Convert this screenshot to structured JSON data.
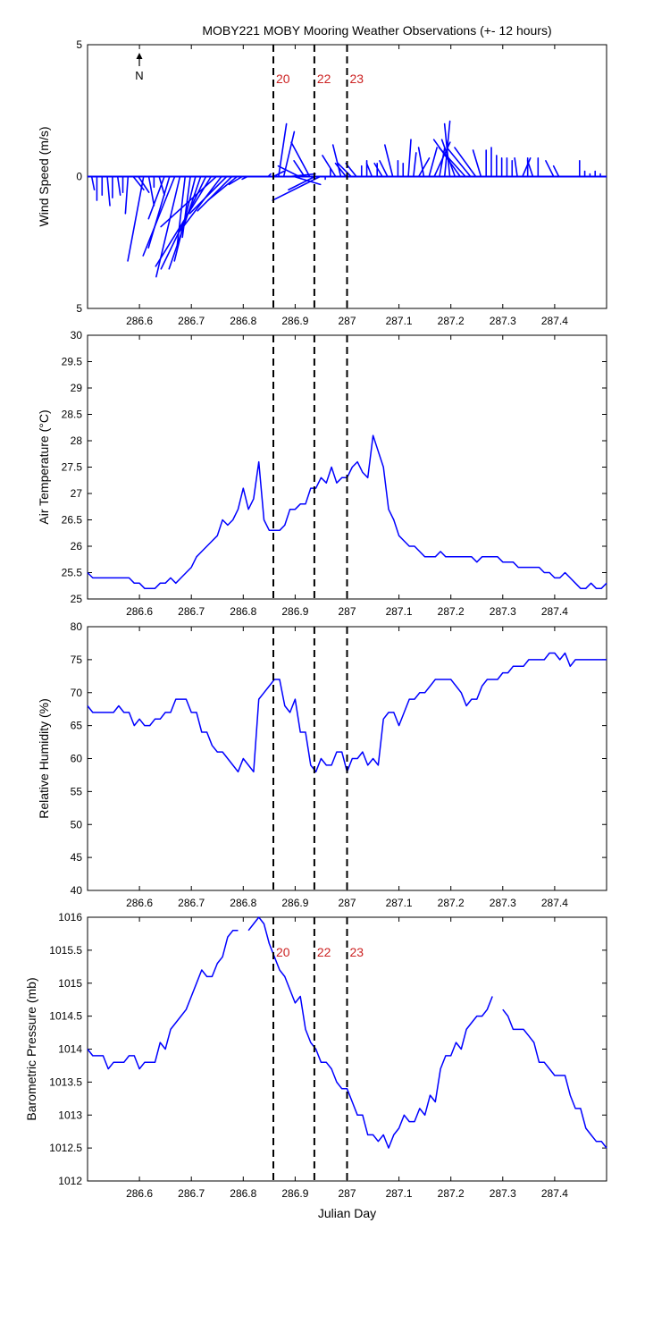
{
  "title": "MOBY221 MOBY Mooring Weather Observations (+- 12 hours)",
  "north_label": "N",
  "colors": {
    "series": "#0000ff",
    "marker_text": "#cc2222",
    "axis": "#000000"
  },
  "chart_data": [
    {
      "id": "wind",
      "type": "vector",
      "ylabel": "Wind Speed (m/s)",
      "xlim": [
        286.5,
        287.5
      ],
      "ylim": [
        -5,
        5
      ],
      "x_ticks": [
        286.6,
        286.7,
        286.8,
        286.9,
        287,
        287.1,
        287.2,
        287.3,
        287.4
      ],
      "x_tick_labels": [
        "286.6",
        "286.7",
        "286.8",
        "286.9",
        "287",
        "287.1",
        "287.2",
        "287.3",
        "287.4"
      ],
      "y_ticks": [
        5,
        0,
        -5
      ],
      "y_tick_labels": [
        "5",
        "0",
        "5"
      ],
      "x": [
        286.508,
        286.518,
        286.528,
        286.538,
        286.548,
        286.558,
        286.568,
        286.578,
        286.588,
        286.598,
        286.608,
        286.618,
        286.628,
        286.638,
        286.648,
        286.658,
        286.668,
        286.678,
        286.688,
        286.698,
        286.708,
        286.718,
        286.728,
        286.738,
        286.748,
        286.758,
        286.768,
        286.778,
        286.788,
        286.798,
        286.808,
        286.818,
        286.828,
        286.838,
        286.848,
        286.858,
        286.868,
        286.878,
        286.888,
        286.898,
        286.908,
        286.918,
        286.928,
        286.938,
        286.948,
        286.958,
        286.968,
        286.978,
        286.988,
        286.998,
        287.008,
        287.018,
        287.028,
        287.038,
        287.048,
        287.058,
        287.068,
        287.078,
        287.088,
        287.098,
        287.108,
        287.118,
        287.128,
        287.138,
        287.148,
        287.158,
        287.168,
        287.178,
        287.188,
        287.198,
        287.208,
        287.218,
        287.228,
        287.238,
        287.248,
        287.258,
        287.268,
        287.278,
        287.288,
        287.298,
        287.308,
        287.318,
        287.328,
        287.338,
        287.348,
        287.358,
        287.368,
        287.378,
        287.388,
        287.398,
        287.408,
        287.418,
        287.428,
        287.438,
        287.448,
        287.458,
        287.468,
        287.478,
        287.488
      ],
      "u": [
        0.1,
        0,
        0,
        0.1,
        0,
        0.1,
        0,
        -0.1,
        0.4,
        0.4,
        -0.6,
        0.2,
        0,
        0.2,
        -0.6,
        -0.8,
        -1.2,
        -0.9,
        -0.3,
        -0.3,
        -0.8,
        -1.2,
        -1.7,
        -2.1,
        -2.1,
        -1.6,
        -1.4,
        -1.3,
        -1.1,
        -0.5,
        -0.2,
        0,
        0,
        0,
        0.1,
        0.4,
        0.3,
        0.4,
        1.0,
        1.0,
        -0.8,
        -0.4,
        -0.7,
        -1.0,
        -1.8,
        0,
        0,
        -0.5,
        -0.3,
        -0.4,
        -0.5,
        -0.4,
        0,
        0,
        -0.2,
        0,
        -0.3,
        -0.3,
        -0.3,
        0,
        0,
        0.1,
        0.1,
        0.4,
        -0.2,
        0.3,
        0.6,
        0.2,
        0.2,
        -0.2,
        -0.5,
        -1.0,
        -1.0,
        -0.9,
        -0.8,
        -0.3,
        0,
        0,
        0,
        0,
        0,
        0,
        -0.1,
        0.3,
        0,
        -0.2,
        0,
        0,
        0,
        -0.3,
        -0.2,
        0,
        0,
        0,
        0,
        0,
        0,
        0,
        0
      ],
      "v": [
        -0.5,
        -0.9,
        -0.7,
        -1.1,
        -0.8,
        -0.7,
        -0.6,
        -1.4,
        -0.5,
        -0.6,
        -3.2,
        -1.1,
        -0.4,
        -0.7,
        -1.6,
        -2.7,
        -3.0,
        -3.8,
        -2.6,
        -2.3,
        -3.2,
        -3.5,
        -3.5,
        -3.4,
        -1.9,
        -2.1,
        -1.4,
        -1.3,
        -0.9,
        -0.3,
        -0.1,
        0,
        0,
        0,
        0.1,
        0.2,
        2.0,
        1.7,
        0.1,
        -0.3,
        0.4,
        0.6,
        1.3,
        -0.5,
        -0.9,
        -0.1,
        0.3,
        0.8,
        1.2,
        0.5,
        0.5,
        0.5,
        0.4,
        0.6,
        0.5,
        0.5,
        0.5,
        0.6,
        1.2,
        0.6,
        0.5,
        1.4,
        0.9,
        0.7,
        1.1,
        1.1,
        1.3,
        1.1,
        2.1,
        2.0,
        1.4,
        1.4,
        1.1,
        1.1,
        1.1,
        1.0,
        1.0,
        1.1,
        0.8,
        0.7,
        0.7,
        0.6,
        0.7,
        0.7,
        0.7,
        0.6,
        0.7,
        0,
        0,
        0.6,
        0.4,
        0,
        0,
        0,
        0.6,
        0.2,
        0.1,
        0.2,
        0.1
      ]
    },
    {
      "id": "air-temperature",
      "type": "line",
      "ylabel": "Air Temperature (°C)",
      "xlim": [
        286.5,
        287.5
      ],
      "ylim": [
        25,
        30
      ],
      "x_ticks": [
        286.6,
        286.7,
        286.8,
        286.9,
        287,
        287.1,
        287.2,
        287.3,
        287.4
      ],
      "x_tick_labels": [
        "286.6",
        "286.7",
        "286.8",
        "286.9",
        "287",
        "287.1",
        "287.2",
        "287.3",
        "287.4"
      ],
      "y_ticks": [
        25,
        25.5,
        26,
        26.5,
        27,
        27.5,
        28,
        28.5,
        29,
        29.5,
        30
      ],
      "y_tick_labels": [
        "25",
        "25.5",
        "26",
        "26.5",
        "27",
        "27.5",
        "28",
        "28.5",
        "29",
        "29.5",
        "30"
      ],
      "x": [
        286.5,
        286.51,
        286.52,
        286.53,
        286.54,
        286.55,
        286.56,
        286.57,
        286.58,
        286.59,
        286.6,
        286.61,
        286.62,
        286.63,
        286.64,
        286.65,
        286.66,
        286.67,
        286.68,
        286.69,
        286.7,
        286.71,
        286.72,
        286.73,
        286.74,
        286.75,
        286.76,
        286.77,
        286.78,
        286.79,
        286.8,
        286.81,
        286.82,
        286.83,
        286.84,
        286.85,
        286.86,
        286.87,
        286.88,
        286.89,
        286.9,
        286.91,
        286.92,
        286.93,
        286.94,
        286.95,
        286.96,
        286.97,
        286.98,
        286.99,
        287.0,
        287.01,
        287.02,
        287.03,
        287.04,
        287.05,
        287.06,
        287.07,
        287.08,
        287.09,
        287.1,
        287.11,
        287.12,
        287.13,
        287.14,
        287.15,
        287.16,
        287.17,
        287.18,
        287.19,
        287.2,
        287.21,
        287.22,
        287.23,
        287.24,
        287.25,
        287.26,
        287.27,
        287.28,
        287.29,
        287.3,
        287.31,
        287.32,
        287.33,
        287.34,
        287.35,
        287.36,
        287.37,
        287.38,
        287.39,
        287.4,
        287.41,
        287.42,
        287.43,
        287.44,
        287.45,
        287.46,
        287.47,
        287.48,
        287.49,
        287.5
      ],
      "y": [
        25.5,
        25.4,
        25.4,
        25.4,
        25.4,
        25.4,
        25.4,
        25.4,
        25.4,
        25.3,
        25.3,
        25.2,
        25.2,
        25.2,
        25.3,
        25.3,
        25.4,
        25.3,
        25.4,
        25.5,
        25.6,
        25.8,
        25.9,
        26.0,
        26.1,
        26.2,
        26.5,
        26.4,
        26.5,
        26.7,
        27.1,
        26.7,
        26.9,
        27.6,
        26.5,
        26.3,
        26.3,
        26.3,
        26.4,
        26.7,
        26.7,
        26.8,
        26.8,
        27.1,
        27.1,
        27.3,
        27.2,
        27.5,
        27.2,
        27.3,
        27.3,
        27.5,
        27.6,
        27.4,
        27.3,
        28.1,
        27.8,
        27.5,
        26.7,
        26.5,
        26.2,
        26.1,
        26.0,
        26.0,
        25.9,
        25.8,
        25.8,
        25.8,
        25.9,
        25.8,
        25.8,
        25.8,
        25.8,
        25.8,
        25.8,
        25.7,
        25.8,
        25.8,
        25.8,
        25.8,
        25.7,
        25.7,
        25.7,
        25.6,
        25.6,
        25.6,
        25.6,
        25.6,
        25.5,
        25.5,
        25.4,
        25.4,
        25.5,
        25.4,
        25.3,
        25.2,
        25.2,
        25.3,
        25.2,
        25.2,
        25.3
      ]
    },
    {
      "id": "relative-humidity",
      "type": "line",
      "ylabel": "Relative Humidity (%)",
      "xlim": [
        286.5,
        287.5
      ],
      "ylim": [
        40,
        80
      ],
      "x_ticks": [
        286.6,
        286.7,
        286.8,
        286.9,
        287,
        287.1,
        287.2,
        287.3,
        287.4
      ],
      "x_tick_labels": [
        "286.6",
        "286.7",
        "286.8",
        "286.9",
        "287",
        "287.1",
        "287.2",
        "287.3",
        "287.4"
      ],
      "y_ticks": [
        40,
        45,
        50,
        55,
        60,
        65,
        70,
        75,
        80
      ],
      "y_tick_labels": [
        "40",
        "45",
        "50",
        "55",
        "60",
        "65",
        "70",
        "75",
        "80"
      ],
      "x": [
        286.5,
        286.51,
        286.52,
        286.53,
        286.54,
        286.55,
        286.56,
        286.57,
        286.58,
        286.59,
        286.6,
        286.61,
        286.62,
        286.63,
        286.64,
        286.65,
        286.66,
        286.67,
        286.68,
        286.69,
        286.7,
        286.71,
        286.72,
        286.73,
        286.74,
        286.75,
        286.76,
        286.77,
        286.78,
        286.79,
        286.8,
        286.81,
        286.82,
        286.83,
        286.84,
        286.85,
        286.86,
        286.87,
        286.88,
        286.89,
        286.9,
        286.91,
        286.92,
        286.93,
        286.94,
        286.95,
        286.96,
        286.97,
        286.98,
        286.99,
        287.0,
        287.01,
        287.02,
        287.03,
        287.04,
        287.05,
        287.06,
        287.07,
        287.08,
        287.09,
        287.1,
        287.11,
        287.12,
        287.13,
        287.14,
        287.15,
        287.16,
        287.17,
        287.18,
        287.19,
        287.2,
        287.21,
        287.22,
        287.23,
        287.24,
        287.25,
        287.26,
        287.27,
        287.28,
        287.29,
        287.3,
        287.31,
        287.32,
        287.33,
        287.34,
        287.35,
        287.36,
        287.37,
        287.38,
        287.39,
        287.4,
        287.41,
        287.42,
        287.43,
        287.44,
        287.45,
        287.46,
        287.47,
        287.48,
        287.49,
        287.5
      ],
      "y": [
        68,
        67,
        67,
        67,
        67,
        67,
        68,
        67,
        67,
        65,
        66,
        65,
        65,
        66,
        66,
        67,
        67,
        69,
        69,
        69,
        67,
        67,
        64,
        64,
        62,
        61,
        61,
        60,
        59,
        58,
        60,
        59,
        58,
        69,
        70,
        71,
        72,
        72,
        68,
        67,
        69,
        64,
        64,
        59,
        58,
        60,
        59,
        59,
        61,
        61,
        58,
        60,
        60,
        61,
        59,
        60,
        59,
        66,
        67,
        67,
        65,
        67,
        69,
        69,
        70,
        70,
        71,
        72,
        72,
        72,
        72,
        71,
        70,
        68,
        69,
        69,
        71,
        72,
        72,
        72,
        73,
        73,
        74,
        74,
        74,
        75,
        75,
        75,
        75,
        76,
        76,
        75,
        76,
        74,
        75,
        75,
        75,
        75,
        75,
        75,
        75
      ]
    },
    {
      "id": "barometric-pressure",
      "type": "line",
      "ylabel": "Barometric Pressure (mb)",
      "xlabel": "Julian Day",
      "xlim": [
        286.5,
        287.5
      ],
      "ylim": [
        1012,
        1016
      ],
      "x_ticks": [
        286.6,
        286.7,
        286.8,
        286.9,
        287,
        287.1,
        287.2,
        287.3,
        287.4
      ],
      "x_tick_labels": [
        "286.6",
        "286.7",
        "286.8",
        "286.9",
        "287",
        "287.1",
        "287.2",
        "287.3",
        "287.4"
      ],
      "y_ticks": [
        1012,
        1012.5,
        1013,
        1013.5,
        1014,
        1014.5,
        1015,
        1015.5,
        1016
      ],
      "y_tick_labels": [
        "1012",
        "1012.5",
        "1013",
        "1013.5",
        "1014",
        "1014.5",
        "1015",
        "1015.5",
        "1016"
      ],
      "x": [
        286.5,
        286.51,
        286.52,
        286.53,
        286.54,
        286.55,
        286.56,
        286.57,
        286.58,
        286.59,
        286.6,
        286.61,
        286.62,
        286.63,
        286.64,
        286.65,
        286.66,
        286.67,
        286.68,
        286.69,
        286.7,
        286.71,
        286.72,
        286.73,
        286.74,
        286.75,
        286.76,
        286.77,
        286.78,
        286.79,
        286.8,
        286.81,
        286.82,
        286.83,
        286.84,
        286.85,
        286.86,
        286.87,
        286.88,
        286.89,
        286.9,
        286.91,
        286.92,
        286.93,
        286.94,
        286.95,
        286.96,
        286.97,
        286.98,
        286.99,
        287.0,
        287.01,
        287.02,
        287.03,
        287.04,
        287.05,
        287.06,
        287.07,
        287.08,
        287.09,
        287.1,
        287.11,
        287.12,
        287.13,
        287.14,
        287.15,
        287.16,
        287.17,
        287.18,
        287.19,
        287.2,
        287.21,
        287.22,
        287.23,
        287.24,
        287.25,
        287.26,
        287.27,
        287.28,
        287.29,
        287.3,
        287.31,
        287.32,
        287.33,
        287.34,
        287.35,
        287.36,
        287.37,
        287.38,
        287.39,
        287.4,
        287.41,
        287.42,
        287.43,
        287.44,
        287.45,
        287.46,
        287.47,
        287.48,
        287.49,
        287.5
      ],
      "y": [
        1014.0,
        1013.9,
        1013.9,
        1013.9,
        1013.7,
        1013.8,
        1013.8,
        1013.8,
        1013.9,
        1013.9,
        1013.7,
        1013.8,
        1013.8,
        1013.8,
        1014.1,
        1014.0,
        1014.3,
        1014.4,
        1014.5,
        1014.6,
        1014.8,
        1015.0,
        1015.2,
        1015.1,
        1015.1,
        1015.3,
        1015.4,
        1015.7,
        1015.8,
        1015.8,
        null,
        1015.8,
        1015.9,
        1016.0,
        1015.9,
        1015.6,
        1015.4,
        1015.2,
        1015.1,
        1014.9,
        1014.7,
        1014.8,
        1014.3,
        1014.1,
        1014.0,
        1013.8,
        1013.8,
        1013.7,
        1013.5,
        1013.4,
        1013.4,
        1013.2,
        1013.0,
        1013.0,
        1012.7,
        1012.7,
        1012.6,
        1012.7,
        1012.5,
        1012.7,
        1012.8,
        1013.0,
        1012.9,
        1012.9,
        1013.1,
        1013.0,
        1013.3,
        1013.2,
        1013.7,
        1013.9,
        1013.9,
        1014.1,
        1014.0,
        1014.3,
        1014.4,
        1014.5,
        1014.5,
        1014.6,
        1014.8,
        null,
        1014.6,
        1014.5,
        1014.3,
        1014.3,
        1014.3,
        1014.2,
        1014.1,
        1013.8,
        1013.8,
        1013.7,
        1013.6,
        1013.6,
        1013.6,
        1013.3,
        1013.1,
        1013.1,
        1012.8,
        1012.7,
        1012.6,
        1012.6,
        1012.5
      ]
    }
  ],
  "event_markers": {
    "x": [
      286.858,
      286.937,
      287.0
    ],
    "labels": [
      "20",
      "22",
      "23"
    ]
  }
}
